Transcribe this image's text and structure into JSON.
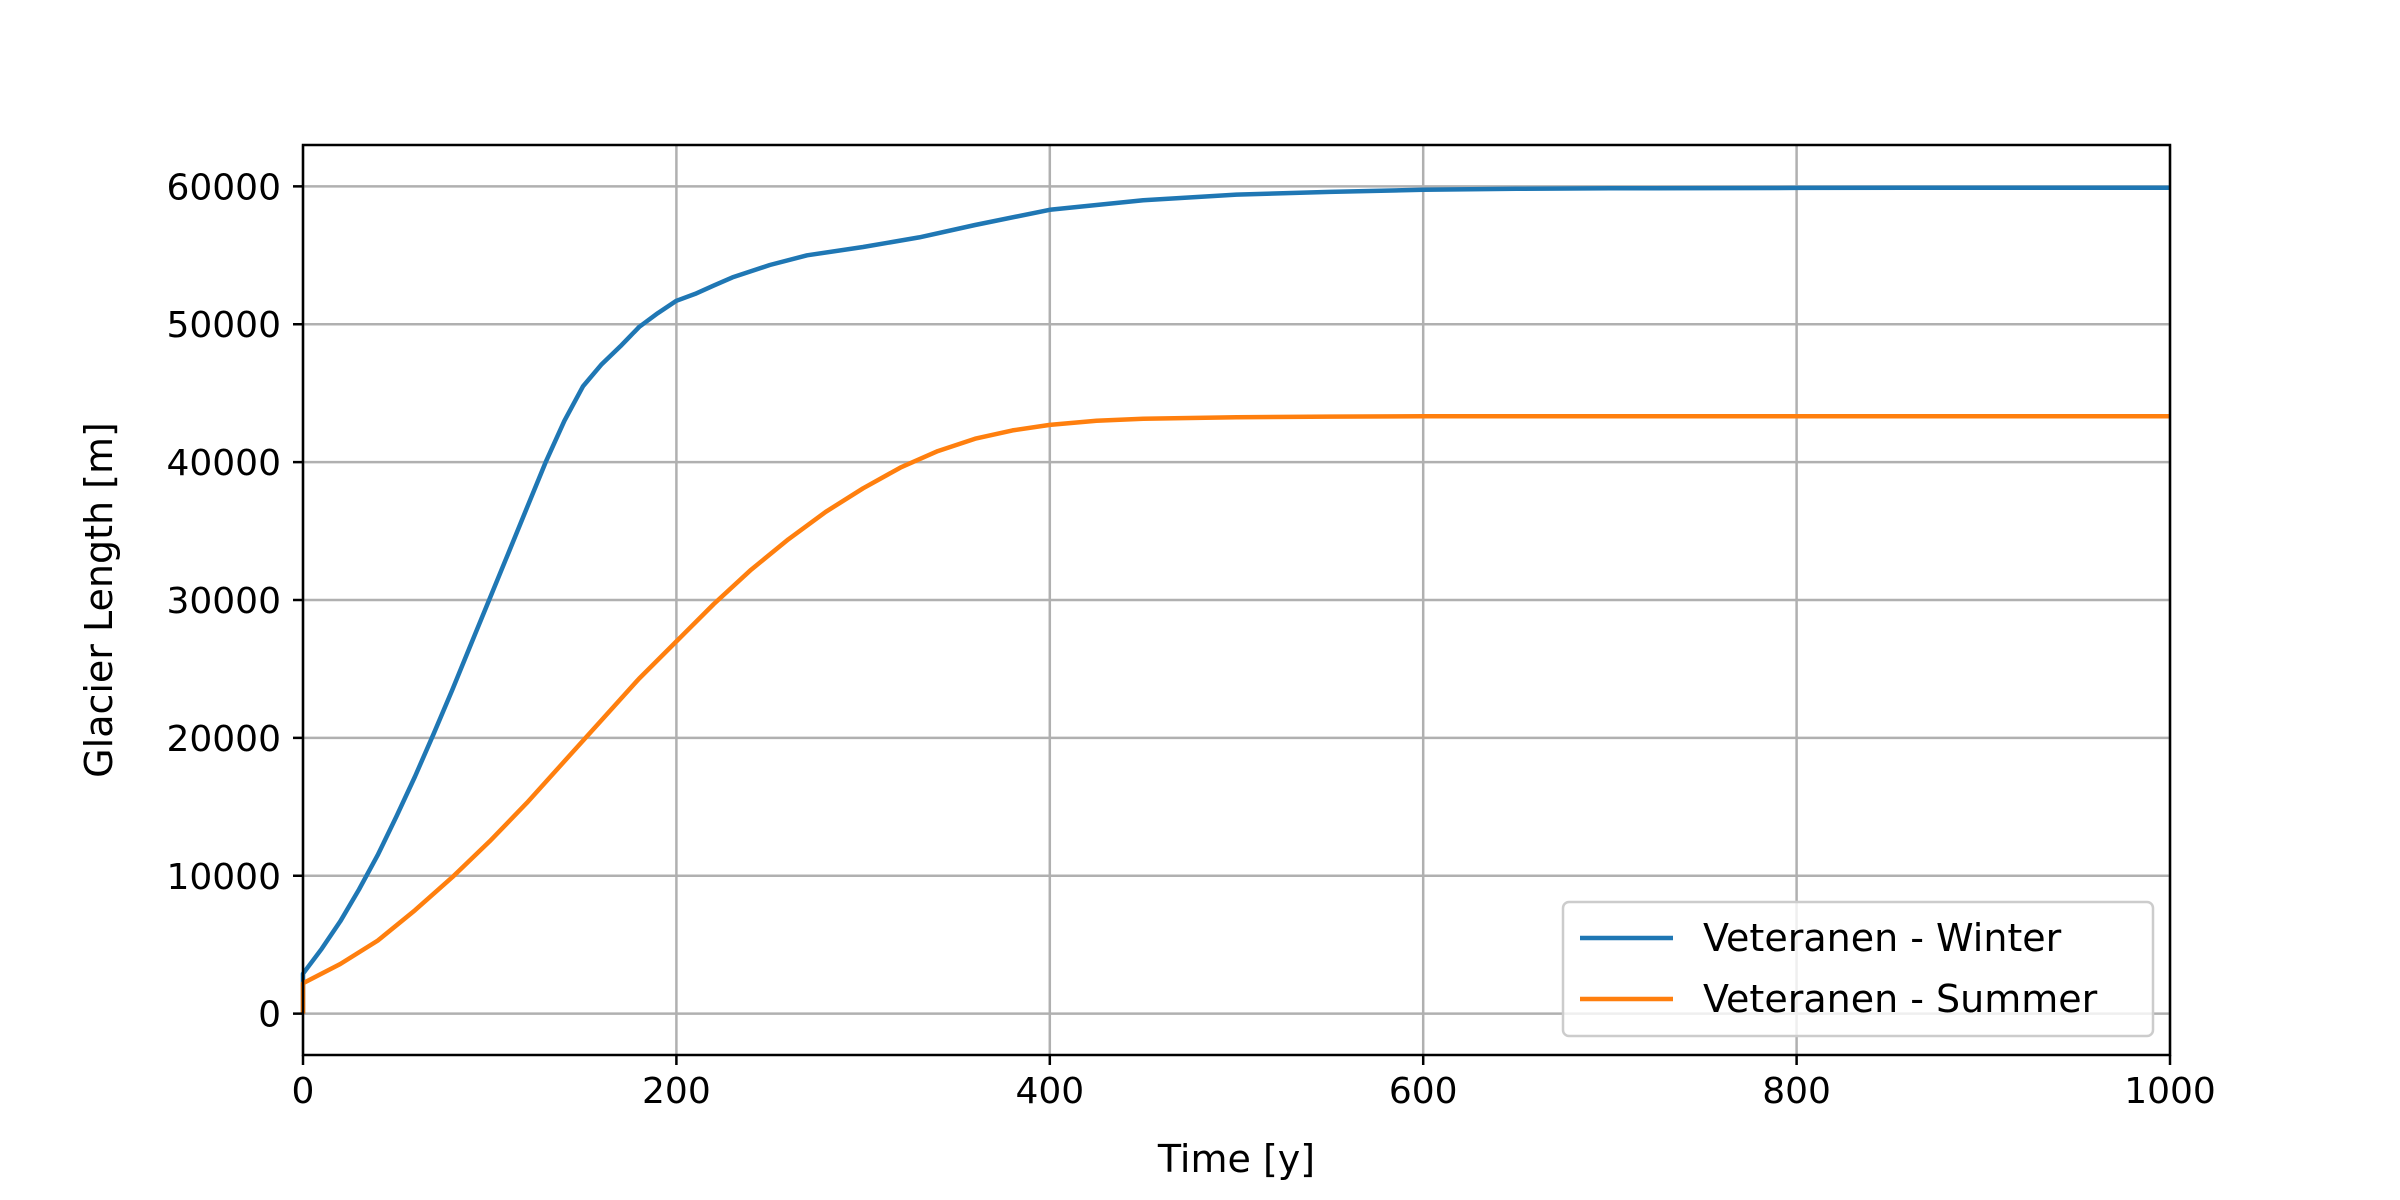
{
  "chart_data": {
    "type": "line",
    "title": "",
    "xlabel": "Time [y]",
    "ylabel": "Glacier Length [m]",
    "xlim": [
      0,
      1000
    ],
    "ylim": [
      -3000,
      63000
    ],
    "xticks": [
      0,
      200,
      400,
      600,
      800,
      1000
    ],
    "yticks": [
      0,
      10000,
      20000,
      30000,
      40000,
      50000,
      60000
    ],
    "grid": true,
    "legend_position": "lower-right",
    "series": [
      {
        "name": "Veteranen - Winter",
        "color": "#1f77b4",
        "x": [
          0,
          10,
          20,
          30,
          40,
          50,
          60,
          70,
          80,
          90,
          100,
          110,
          120,
          130,
          140,
          150,
          160,
          170,
          175,
          180,
          190,
          200,
          210,
          220,
          230,
          250,
          270,
          300,
          330,
          360,
          400,
          450,
          500,
          550,
          600,
          650,
          700,
          800,
          900,
          1000
        ],
        "y": [
          2900,
          4700,
          6700,
          9000,
          11500,
          14300,
          17200,
          20300,
          23500,
          26800,
          30100,
          33400,
          36700,
          40000,
          43000,
          45500,
          47100,
          48400,
          49100,
          49800,
          50800,
          51700,
          52200,
          52800,
          53400,
          54300,
          55000,
          55600,
          56300,
          57200,
          58300,
          59000,
          59400,
          59600,
          59750,
          59820,
          59860,
          59890,
          59900,
          59900
        ]
      },
      {
        "name": "Veteranen - Summer",
        "color": "#ff7f0e",
        "x": [
          0,
          20,
          40,
          60,
          80,
          100,
          120,
          140,
          160,
          180,
          200,
          220,
          240,
          260,
          280,
          300,
          320,
          340,
          360,
          380,
          400,
          425,
          450,
          500,
          550,
          600,
          700,
          800,
          900,
          1000
        ],
        "y": [
          2200,
          3600,
          5300,
          7500,
          9900,
          12500,
          15300,
          18300,
          21300,
          24300,
          27000,
          29700,
          32200,
          34400,
          36400,
          38100,
          39600,
          40800,
          41700,
          42300,
          42700,
          43000,
          43150,
          43250,
          43300,
          43320,
          43330,
          43330,
          43330,
          43330
        ]
      }
    ]
  }
}
